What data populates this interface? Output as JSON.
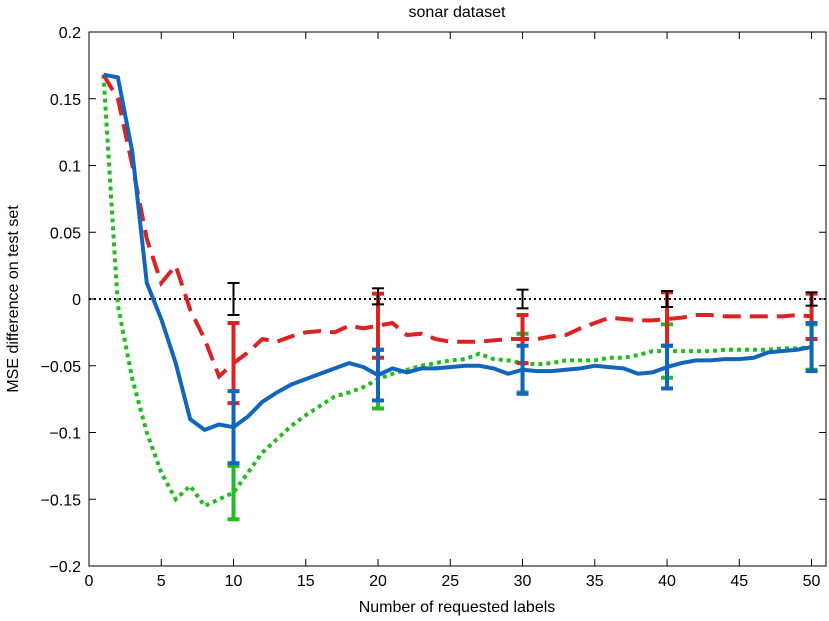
{
  "chart_data": {
    "type": "line",
    "title": "sonar dataset",
    "xlabel": "Number of requested labels",
    "ylabel": "MSE difference on test set",
    "xlim": [
      0,
      51
    ],
    "ylim": [
      -0.2,
      0.2
    ],
    "xticks": [
      0,
      5,
      10,
      15,
      20,
      25,
      30,
      35,
      40,
      45,
      50
    ],
    "yticks": [
      {
        "value": -0.2,
        "label": "−0.2"
      },
      {
        "value": -0.15,
        "label": "−0.15"
      },
      {
        "value": -0.1,
        "label": "−0.1"
      },
      {
        "value": -0.05,
        "label": "−0.05"
      },
      0,
      0.05,
      0.1,
      0.15,
      0.2
    ],
    "x": [
      1,
      2,
      3,
      4,
      5,
      6,
      7,
      8,
      9,
      10,
      11,
      12,
      13,
      14,
      15,
      16,
      17,
      18,
      19,
      20,
      21,
      22,
      23,
      24,
      25,
      26,
      27,
      28,
      29,
      30,
      31,
      32,
      33,
      34,
      35,
      36,
      37,
      38,
      39,
      40,
      41,
      42,
      43,
      44,
      45,
      46,
      47,
      48,
      49,
      50
    ],
    "reference": {
      "y": 0,
      "color": "#000000",
      "x": [
        10,
        20,
        30,
        40,
        50
      ],
      "values": [
        0,
        0.002,
        0,
        0,
        0
      ],
      "errors": [
        0.012,
        0.006,
        0.007,
        0.006,
        0.005
      ]
    },
    "series": [
      {
        "color": "#22bb22",
        "style": "dotted",
        "values": [
          0.168,
          -0.005,
          -0.06,
          -0.1,
          -0.13,
          -0.15,
          -0.14,
          -0.155,
          -0.15,
          -0.145,
          -0.13,
          -0.115,
          -0.105,
          -0.095,
          -0.087,
          -0.08,
          -0.073,
          -0.07,
          -0.066,
          -0.06,
          -0.056,
          -0.053,
          -0.05,
          -0.048,
          -0.046,
          -0.045,
          -0.041,
          -0.045,
          -0.046,
          -0.048,
          -0.049,
          -0.048,
          -0.046,
          -0.046,
          -0.046,
          -0.044,
          -0.044,
          -0.042,
          -0.039,
          -0.039,
          -0.039,
          -0.039,
          -0.039,
          -0.038,
          -0.038,
          -0.038,
          -0.038,
          -0.037,
          -0.037,
          -0.036
        ],
        "errors": [
          null,
          null,
          null,
          null,
          null,
          null,
          null,
          null,
          null,
          0.02,
          null,
          null,
          null,
          null,
          null,
          null,
          null,
          null,
          null,
          0.022,
          null,
          null,
          null,
          null,
          null,
          null,
          null,
          null,
          null,
          0.022,
          null,
          null,
          null,
          null,
          null,
          null,
          null,
          null,
          null,
          0.02,
          null,
          null,
          null,
          null,
          null,
          null,
          null,
          null,
          null,
          0.017
        ]
      },
      {
        "color": "#dd2222",
        "style": "dashed",
        "values": [
          0.168,
          0.15,
          0.1,
          0.045,
          0.012,
          0.025,
          -0.008,
          -0.03,
          -0.058,
          -0.048,
          -0.04,
          -0.03,
          -0.032,
          -0.028,
          -0.025,
          -0.024,
          -0.025,
          -0.02,
          -0.022,
          -0.02,
          -0.018,
          -0.027,
          -0.026,
          -0.03,
          -0.032,
          -0.032,
          -0.032,
          -0.031,
          -0.03,
          -0.03,
          -0.03,
          -0.028,
          -0.027,
          -0.022,
          -0.018,
          -0.014,
          -0.015,
          -0.016,
          -0.016,
          -0.015,
          -0.014,
          -0.012,
          -0.012,
          -0.013,
          -0.013,
          -0.013,
          -0.013,
          -0.013,
          -0.012,
          -0.013
        ],
        "errors": [
          null,
          null,
          null,
          null,
          null,
          null,
          null,
          null,
          null,
          0.03,
          null,
          null,
          null,
          null,
          null,
          null,
          null,
          null,
          null,
          0.024,
          null,
          null,
          null,
          null,
          null,
          null,
          null,
          null,
          null,
          0.018,
          null,
          null,
          null,
          null,
          null,
          null,
          null,
          null,
          null,
          0.02,
          null,
          null,
          null,
          null,
          null,
          null,
          null,
          null,
          null,
          0.017
        ]
      },
      {
        "color": "#1166bb",
        "style": "solid",
        "values": [
          0.168,
          0.166,
          0.11,
          0.012,
          -0.015,
          -0.048,
          -0.09,
          -0.098,
          -0.094,
          -0.096,
          -0.088,
          -0.077,
          -0.07,
          -0.064,
          -0.06,
          -0.056,
          -0.052,
          -0.048,
          -0.051,
          -0.057,
          -0.052,
          -0.055,
          -0.052,
          -0.052,
          -0.051,
          -0.05,
          -0.05,
          -0.052,
          -0.056,
          -0.053,
          -0.054,
          -0.054,
          -0.053,
          -0.052,
          -0.05,
          -0.051,
          -0.052,
          -0.056,
          -0.055,
          -0.051,
          -0.048,
          -0.046,
          -0.046,
          -0.045,
          -0.045,
          -0.044,
          -0.04,
          -0.039,
          -0.038,
          -0.036
        ],
        "errors": [
          null,
          null,
          null,
          null,
          null,
          null,
          null,
          null,
          null,
          0.027,
          null,
          null,
          null,
          null,
          null,
          null,
          null,
          null,
          null,
          0.019,
          null,
          null,
          null,
          null,
          null,
          null,
          null,
          null,
          null,
          0.018,
          null,
          null,
          null,
          null,
          null,
          null,
          null,
          null,
          null,
          0.016,
          null,
          null,
          null,
          null,
          null,
          null,
          null,
          null,
          null,
          0.018
        ]
      }
    ]
  }
}
